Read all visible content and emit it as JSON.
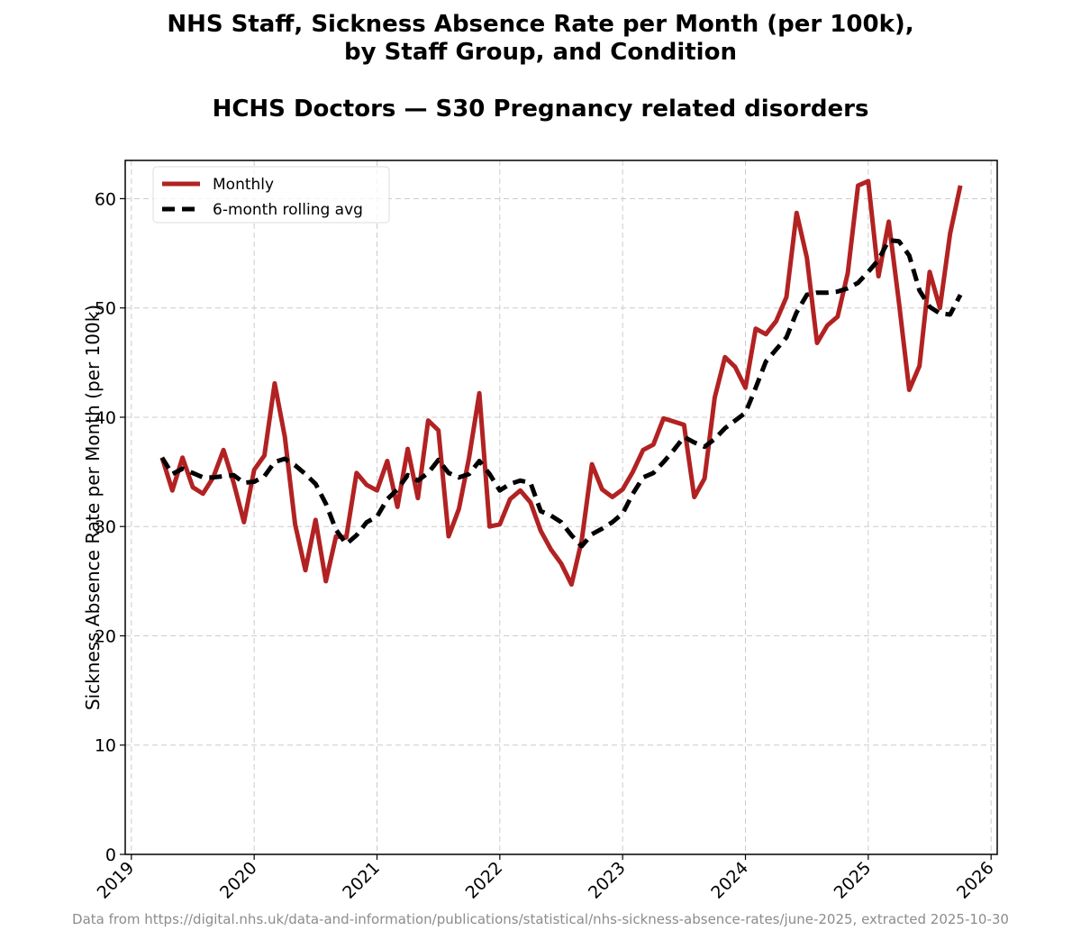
{
  "chart_data": {
    "type": "line",
    "title_line1": "NHS Staff, Sickness Absence Rate per Month (per 100k),",
    "title_line2": "by Staff Group, and Condition",
    "subtitle": "HCHS Doctors — S30 Pregnancy related disorders",
    "xlabel": "",
    "ylabel": "Sickness Absence Rate per Month (per 100k)",
    "footer": "Data from https://digital.nhs.uk/data-and-information/publications/statistical/nhs-sickness-absence-rates/june-2025, extracted 2025-10-30",
    "xlim": [
      2018.95,
      2026.05
    ],
    "ylim": [
      0,
      63.5
    ],
    "x_ticks": [
      2019,
      2020,
      2021,
      2022,
      2023,
      2024,
      2025,
      2026
    ],
    "x_tick_labels": [
      "2019",
      "2020",
      "2021",
      "2022",
      "2023",
      "2024",
      "2025",
      "2026"
    ],
    "y_ticks": [
      0,
      10,
      20,
      30,
      40,
      50,
      60
    ],
    "y_tick_labels": [
      "0",
      "10",
      "20",
      "30",
      "40",
      "50",
      "60"
    ],
    "grid": true,
    "legend": "upper-left",
    "colors": {
      "monthly": "#b22222",
      "rolling": "#000000",
      "grid": "#cccccc"
    },
    "x_start_year": 2019,
    "x_start_month": 4,
    "series": [
      {
        "name": "Monthly",
        "style": "solid",
        "values": [
          36.3,
          33.3,
          36.3,
          33.6,
          33.0,
          34.5,
          37.0,
          34.0,
          30.4,
          35.2,
          36.5,
          43.1,
          38.2,
          30.2,
          26.0,
          30.6,
          25.0,
          29.1,
          29.0,
          34.9,
          33.8,
          33.3,
          36.0,
          31.8,
          37.1,
          32.6,
          39.7,
          38.8,
          29.1,
          31.6,
          36.3,
          42.2,
          30.0,
          30.2,
          32.5,
          33.3,
          32.2,
          29.6,
          27.9,
          26.6,
          24.7,
          28.7,
          35.7,
          33.4,
          32.7,
          33.4,
          35.0,
          37.0,
          37.5,
          39.9,
          39.6,
          39.3,
          32.7,
          34.4,
          41.8,
          45.5,
          44.6,
          42.7,
          48.1,
          47.6,
          48.8,
          51.0,
          58.7,
          54.6,
          46.8,
          48.4,
          49.2,
          53.2,
          61.2,
          61.6,
          52.9,
          57.9,
          50.5,
          42.5,
          44.7,
          53.3,
          50.0,
          56.8,
          61.2
        ]
      },
      {
        "name": "6-month rolling avg",
        "style": "dashed",
        "values": [
          36.3,
          34.8,
          35.3,
          34.9,
          34.5,
          34.5,
          34.6,
          34.7,
          34.0,
          34.1,
          34.6,
          35.9,
          36.2,
          35.6,
          34.8,
          33.9,
          32.1,
          29.7,
          28.4,
          29.2,
          30.4,
          30.9,
          32.5,
          33.4,
          34.7,
          34.2,
          34.9,
          36.1,
          34.9,
          34.5,
          34.8,
          36.0,
          34.8,
          33.3,
          33.9,
          34.2,
          34.0,
          31.4,
          31.0,
          30.4,
          29.2,
          28.2,
          29.3,
          29.8,
          30.4,
          31.2,
          33.0,
          34.5,
          34.9,
          35.9,
          37.0,
          38.2,
          37.7,
          37.3,
          38.0,
          39.0,
          39.7,
          40.4,
          42.7,
          45.1,
          46.2,
          47.3,
          49.6,
          51.2,
          51.4,
          51.4,
          51.5,
          51.8,
          52.3,
          53.3,
          54.4,
          56.2,
          56.1,
          54.8,
          51.6,
          50.1,
          49.5,
          49.4,
          51.2
        ]
      }
    ]
  }
}
